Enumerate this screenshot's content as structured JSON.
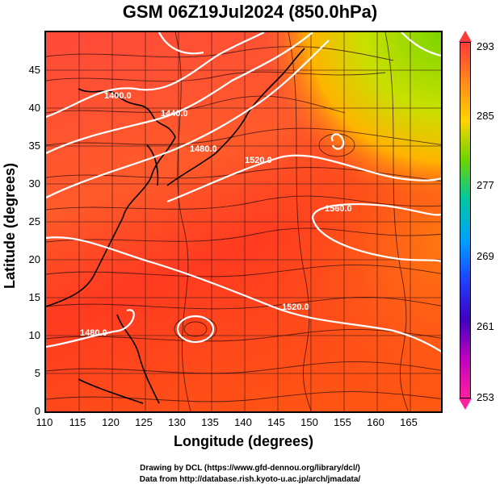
{
  "title": "GSM 06Z19Jul2024 (850.0hPa)",
  "axes": {
    "xlabel": "Longitude (degrees)",
    "ylabel": "Latitude  (degrees)",
    "x_ticks": [
      "110",
      "115",
      "120",
      "125",
      "130",
      "135",
      "140",
      "145",
      "150",
      "155",
      "160",
      "165"
    ],
    "y_ticks": [
      "0",
      "5",
      "10",
      "15",
      "20",
      "25",
      "30",
      "35",
      "40",
      "45"
    ]
  },
  "colorbar": {
    "labels": [
      "293",
      "285",
      "277",
      "269",
      "261",
      "253"
    ],
    "colors": [
      "#ff3a3a",
      "#ff8a1a",
      "#ffd400",
      "#6cd400",
      "#00c8a0",
      "#00a0ff",
      "#2040ff",
      "#4000c0",
      "#c000c0",
      "#ff20a0"
    ]
  },
  "contour_labels": [
    "1400.0",
    "1440.0",
    "1480.0",
    "1520.0",
    "1560.0",
    "1520.0",
    "1480.0"
  ],
  "credits": {
    "line1": "Drawing by DCL (https://www.gfd-dennou.org/library/dcl/)",
    "line2": "Data from http://database.rish.kyoto-u.ac.jp/arch/jmadata/"
  }
}
